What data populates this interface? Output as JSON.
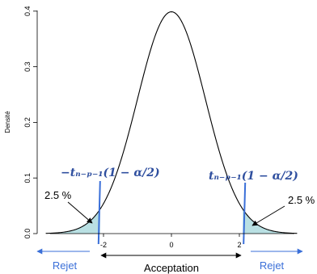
{
  "chart_data": {
    "type": "line",
    "title": "",
    "xlabel": "",
    "ylabel": "Densité",
    "distribution": "Student t density curve",
    "critical_value": 2.1,
    "x_range": [
      -3.7,
      3.7
    ],
    "xlim": [
      -3.3,
      3.3
    ],
    "ylim": [
      0,
      0.4
    ],
    "x_ticks": [
      {
        "value": -2,
        "label": "-2"
      },
      {
        "value": 0,
        "label": "0"
      },
      {
        "value": 2,
        "label": "2"
      }
    ],
    "y_ticks": [
      {
        "value": 0,
        "label": "0.0"
      },
      {
        "value": 0.1,
        "label": "0.1"
      },
      {
        "value": 0.2,
        "label": "0.2"
      },
      {
        "value": 0.3,
        "label": "0.3"
      },
      {
        "value": 0.4,
        "label": "0.4"
      }
    ],
    "grid": false,
    "annotations": {
      "crit_left": "−tₙ₋ₚ₋₁(1 − α/2)",
      "crit_right": "tₙ₋ₚ₋₁(1 − α/2)",
      "tail_left_pct": "2.5 %",
      "tail_right_pct": "2.5 %",
      "reject_left": "Rejet",
      "reject_right": "Rejet",
      "accept": "Acceptation"
    },
    "colors": {
      "curve": "#000000",
      "tail_fill": "#b9e0e3",
      "critical_line": "#3a6fd8",
      "crit_text": "#2f4f9f",
      "reject_arrow": "#3a6fd8",
      "accept_arrow": "#000000"
    }
  }
}
